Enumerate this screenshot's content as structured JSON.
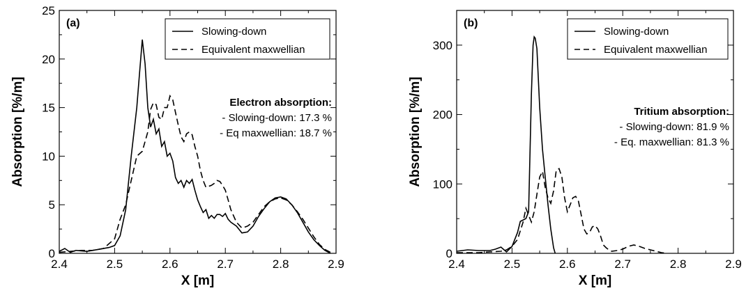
{
  "chart_data": [
    {
      "type": "line",
      "panel_label": "(a)",
      "xlabel": "X [m]",
      "ylabel": "Absorption [%/m]",
      "xlim": [
        2.4,
        2.9
      ],
      "ylim": [
        0,
        25
      ],
      "xticks": [
        "2.4",
        "2.5",
        "2.6",
        "2.7",
        "2.8",
        "2.9"
      ],
      "yticks": [
        "0",
        "5",
        "10",
        "15",
        "20",
        "25"
      ],
      "legend_position": "top-right",
      "series": [
        {
          "name": "Slowing-down",
          "style": "solid",
          "x": [
            2.4,
            2.41,
            2.42,
            2.43,
            2.45,
            2.47,
            2.49,
            2.5,
            2.51,
            2.52,
            2.53,
            2.54,
            2.545,
            2.55,
            2.555,
            2.56,
            2.565,
            2.57,
            2.575,
            2.58,
            2.585,
            2.59,
            2.595,
            2.6,
            2.605,
            2.61,
            2.615,
            2.62,
            2.625,
            2.63,
            2.635,
            2.64,
            2.645,
            2.65,
            2.655,
            2.66,
            2.665,
            2.67,
            2.675,
            2.68,
            2.685,
            2.69,
            2.695,
            2.7,
            2.705,
            2.71,
            2.72,
            2.73,
            2.74,
            2.75,
            2.76,
            2.77,
            2.78,
            2.79,
            2.8,
            2.81,
            2.82,
            2.83,
            2.84,
            2.85,
            2.86,
            2.87,
            2.88,
            2.89
          ],
          "y": [
            0.2,
            0.5,
            0.1,
            0.3,
            0.2,
            0.4,
            0.6,
            0.8,
            1.8,
            4.5,
            10.0,
            15.0,
            18.5,
            22.0,
            19.5,
            15.0,
            13.0,
            13.8,
            12.3,
            12.8,
            11.0,
            11.5,
            10.0,
            10.3,
            9.5,
            7.8,
            7.2,
            7.5,
            6.8,
            7.5,
            7.2,
            7.6,
            6.5,
            5.5,
            4.8,
            4.2,
            4.5,
            3.6,
            3.9,
            3.6,
            4.0,
            4.0,
            3.8,
            4.1,
            3.5,
            3.2,
            2.8,
            2.1,
            2.2,
            2.8,
            3.8,
            4.6,
            5.3,
            5.7,
            5.8,
            5.6,
            5.0,
            4.2,
            3.2,
            2.2,
            1.4,
            0.8,
            0.3,
            0.0
          ]
        },
        {
          "name": "Equivalent maxwellian",
          "style": "dashed",
          "x": [
            2.4,
            2.42,
            2.44,
            2.46,
            2.48,
            2.5,
            2.51,
            2.52,
            2.53,
            2.54,
            2.55,
            2.56,
            2.565,
            2.57,
            2.575,
            2.58,
            2.585,
            2.59,
            2.595,
            2.6,
            2.605,
            2.61,
            2.615,
            2.62,
            2.625,
            2.63,
            2.635,
            2.64,
            2.645,
            2.65,
            2.655,
            2.66,
            2.665,
            2.67,
            2.675,
            2.68,
            2.685,
            2.69,
            2.695,
            2.7,
            2.705,
            2.71,
            2.72,
            2.73,
            2.74,
            2.75,
            2.76,
            2.77,
            2.78,
            2.79,
            2.8,
            2.81,
            2.82,
            2.83,
            2.84,
            2.85,
            2.86,
            2.87,
            2.88,
            2.89
          ],
          "y": [
            0.1,
            0.2,
            0.3,
            0.3,
            0.5,
            1.5,
            3.5,
            5.0,
            7.5,
            10.0,
            10.5,
            12.5,
            14.8,
            15.5,
            15.3,
            14.0,
            13.8,
            15.0,
            15.0,
            16.2,
            15.8,
            14.5,
            13.2,
            12.0,
            11.5,
            12.3,
            12.5,
            12.2,
            11.0,
            10.0,
            8.5,
            7.5,
            6.8,
            6.9,
            7.0,
            7.2,
            7.5,
            7.4,
            7.0,
            6.5,
            5.5,
            4.5,
            3.2,
            2.6,
            2.8,
            3.2,
            4.0,
            4.8,
            5.3,
            5.6,
            5.7,
            5.5,
            5.0,
            4.3,
            3.5,
            2.6,
            1.7,
            0.9,
            0.4,
            0.1
          ]
        }
      ],
      "annotation": {
        "heading": "Electron absorption:",
        "lines": [
          "- Slowing-down: 17.3 %",
          "- Eq maxwellian: 18.7 %"
        ]
      }
    },
    {
      "type": "line",
      "panel_label": "(b)",
      "xlabel": "X [m]",
      "ylabel": "Absorption [%/m]",
      "xlim": [
        2.4,
        2.9
      ],
      "ylim": [
        0,
        350
      ],
      "xticks": [
        "2.4",
        "2.5",
        "2.6",
        "2.7",
        "2.8",
        "2.9"
      ],
      "yticks": [
        "0",
        "100",
        "200",
        "300"
      ],
      "ytick_values": [
        0,
        100,
        200,
        300
      ],
      "legend_position": "top-right",
      "series": [
        {
          "name": "Slowing-down",
          "style": "solid",
          "x": [
            2.4,
            2.42,
            2.44,
            2.46,
            2.47,
            2.48,
            2.49,
            2.5,
            2.51,
            2.515,
            2.52,
            2.525,
            2.53,
            2.535,
            2.538,
            2.54,
            2.542,
            2.545,
            2.55,
            2.555,
            2.56,
            2.565,
            2.57,
            2.575,
            2.578
          ],
          "y": [
            3,
            5,
            4,
            4,
            6,
            9,
            2,
            10,
            30,
            46,
            48,
            50,
            60,
            230,
            300,
            312,
            310,
            295,
            210,
            150,
            110,
            70,
            35,
            8,
            0
          ]
        },
        {
          "name": "Equivalent maxwellian",
          "style": "dashed",
          "x": [
            2.4,
            2.42,
            2.44,
            2.46,
            2.48,
            2.49,
            2.5,
            2.51,
            2.52,
            2.525,
            2.53,
            2.535,
            2.54,
            2.545,
            2.55,
            2.555,
            2.56,
            2.565,
            2.57,
            2.575,
            2.58,
            2.585,
            2.59,
            2.595,
            2.6,
            2.605,
            2.61,
            2.615,
            2.62,
            2.625,
            2.63,
            2.635,
            2.64,
            2.645,
            2.65,
            2.655,
            2.66,
            2.665,
            2.67,
            2.675,
            2.68,
            2.69,
            2.7,
            2.71,
            2.72,
            2.73,
            2.74,
            2.75,
            2.76,
            2.77,
            2.78
          ],
          "y": [
            1,
            1,
            1,
            2,
            3,
            5,
            10,
            20,
            45,
            65,
            55,
            45,
            60,
            85,
            110,
            118,
            95,
            80,
            72,
            90,
            120,
            122,
            110,
            80,
            60,
            70,
            80,
            82,
            75,
            55,
            35,
            28,
            30,
            38,
            40,
            35,
            25,
            12,
            8,
            5,
            3,
            4,
            6,
            10,
            12,
            10,
            7,
            5,
            3,
            1,
            0
          ]
        }
      ],
      "annotation": {
        "heading": "Tritium absorption:",
        "lines": [
          "- Slowing-down: 81.9 %",
          "- Eq. maxwellian: 81.3 %"
        ]
      }
    }
  ]
}
